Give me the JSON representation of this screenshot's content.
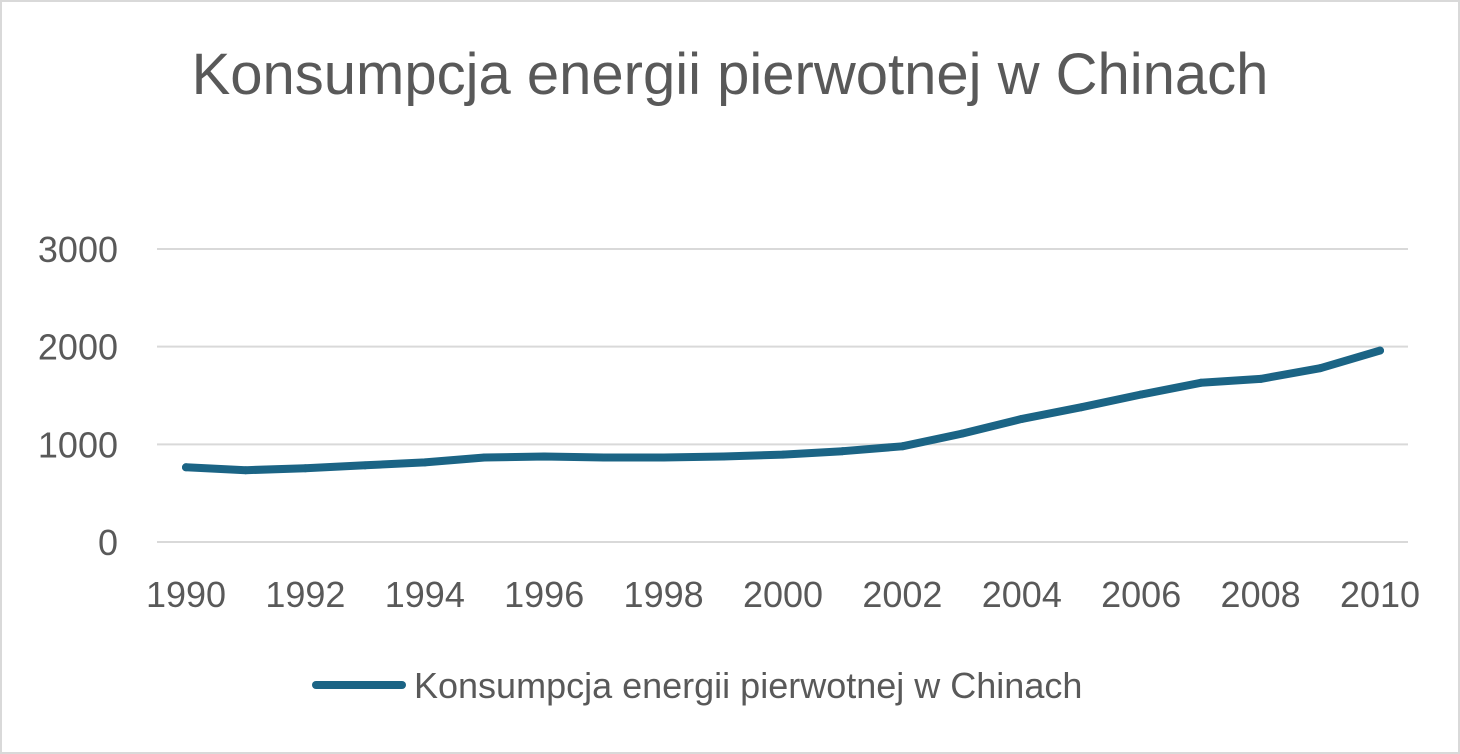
{
  "chart_data": {
    "type": "line",
    "title": "Konsumpcja energii pierwotnej w Chinach",
    "xlabel": "",
    "ylabel": "",
    "x": [
      1990,
      1991,
      1992,
      1993,
      1994,
      1995,
      1996,
      1997,
      1998,
      1999,
      2000,
      2001,
      2002,
      2003,
      2004,
      2005,
      2006,
      2007,
      2008,
      2009,
      2010
    ],
    "x_tick_labels": [
      "1990",
      "1992",
      "1994",
      "1996",
      "1998",
      "2000",
      "2002",
      "2004",
      "2006",
      "2008",
      "2010"
    ],
    "y_tick_labels": [
      "0",
      "1000",
      "2000",
      "3000"
    ],
    "ylim": [
      0,
      3000
    ],
    "grid": true,
    "legend_position": "bottom",
    "series": [
      {
        "name": "Konsumpcja energii pierwotnej w Chinach",
        "color": "#1b6485",
        "values": [
          765,
          735,
          755,
          785,
          815,
          865,
          875,
          865,
          865,
          875,
          895,
          930,
          980,
          1110,
          1260,
          1380,
          1510,
          1630,
          1670,
          1780,
          1960
        ]
      }
    ]
  }
}
